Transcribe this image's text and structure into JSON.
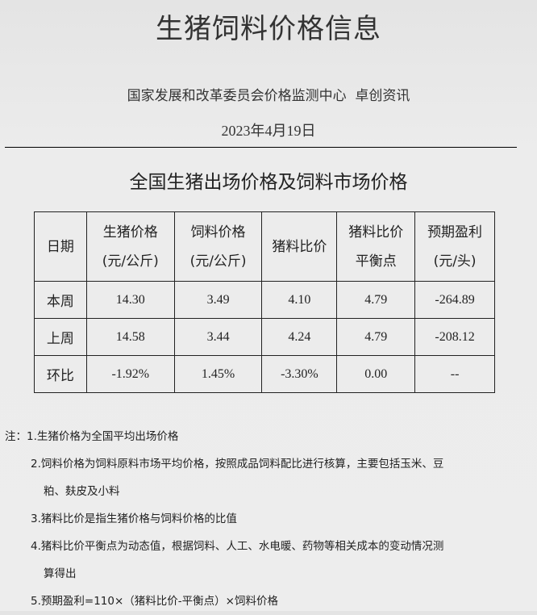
{
  "header": {
    "title": "生猪饲料价格信息",
    "source": "国家发展和改革委员会价格监测中心  卓创资讯",
    "date": "2023年4月19日"
  },
  "section_title": "全国生猪出场价格及饲料市场价格",
  "table": {
    "headers": [
      [
        "日期"
      ],
      [
        "生猪价格",
        "(元/公斤)"
      ],
      [
        "饲料价格",
        "(元/公斤)"
      ],
      [
        "猪料比价"
      ],
      [
        "猪料比价",
        "平衡点"
      ],
      [
        "预期盈利",
        "(元/头)"
      ]
    ],
    "rows": [
      [
        "本周",
        "14.30",
        "3.49",
        "4.10",
        "4.79",
        "-264.89"
      ],
      [
        "上周",
        "14.58",
        "3.44",
        "4.24",
        "4.79",
        "-208.12"
      ],
      [
        "环比",
        "-1.92%",
        "1.45%",
        "-3.30%",
        "0.00",
        "--"
      ]
    ]
  },
  "notes": {
    "prefix": "注：",
    "items": [
      "1.生猪价格为全国平均出场价格",
      "2.饲料价格为饲料原料市场平均价格，按照成品饲料配比进行核算，主要包括玉米、豆",
      "粕、麸皮及小料",
      "3.猪料比价是指生猪价格与饲料价格的比值",
      "4.猪料比价平衡点为动态值，根据饲料、人工、水电暖、药物等相关成本的变动情况测",
      "算得出",
      "5.预期盈利=110×（猪料比价-平衡点）×饲料价格"
    ]
  }
}
